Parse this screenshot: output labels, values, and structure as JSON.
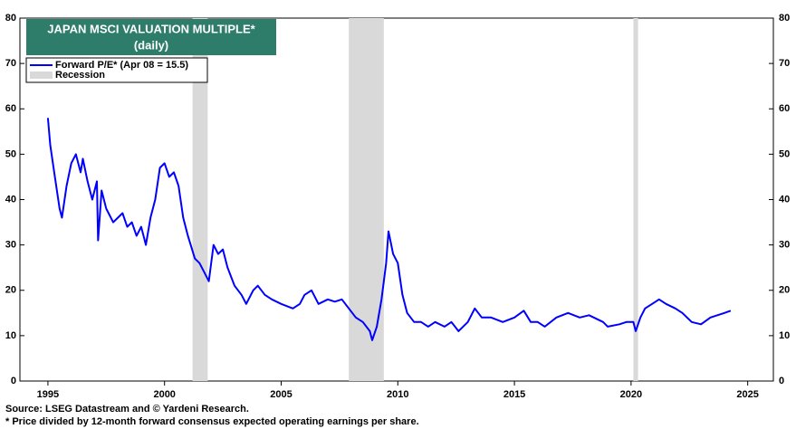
{
  "chart_data": {
    "type": "line",
    "title": "JAPAN MSCI VALUATION MULTIPLE*",
    "subtitle": "(daily)",
    "source": "Source: LSEG Datastream and © Yardeni Research.",
    "footnote": "* Price divided by 12-month forward consensus expected operating earnings per share.",
    "xlim": [
      1993.8,
      2026.1
    ],
    "xticks": [
      1995,
      2000,
      2005,
      2010,
      2015,
      2020,
      2025
    ],
    "ylim": [
      0,
      80
    ],
    "yticks": [
      0,
      10,
      20,
      30,
      40,
      50,
      60,
      70,
      80
    ],
    "recession_label": "Recession",
    "recession_color": "#d9d9d9",
    "recessions": [
      [
        2001.2,
        2001.85
      ],
      [
        2007.9,
        2009.4
      ],
      [
        2020.1,
        2020.3
      ]
    ],
    "x": [
      1995.0,
      1995.1,
      1995.3,
      1995.5,
      1995.6,
      1995.8,
      1996.0,
      1996.2,
      1996.4,
      1996.5,
      1996.7,
      1996.9,
      1997.1,
      1997.15,
      1997.3,
      1997.5,
      1997.8,
      1998.0,
      1998.2,
      1998.4,
      1998.6,
      1998.8,
      1999.0,
      1999.2,
      1999.4,
      1999.6,
      1999.8,
      2000.0,
      2000.2,
      2000.4,
      2000.6,
      2000.8,
      2001.0,
      2001.3,
      2001.5,
      2001.7,
      2001.9,
      2002.1,
      2002.3,
      2002.5,
      2002.7,
      2003.0,
      2003.3,
      2003.5,
      2003.8,
      2004.0,
      2004.3,
      2004.6,
      2005.0,
      2005.5,
      2005.8,
      2006.0,
      2006.3,
      2006.6,
      2007.0,
      2007.3,
      2007.6,
      2007.9,
      2008.2,
      2008.5,
      2008.8,
      2008.9,
      2009.1,
      2009.3,
      2009.5,
      2009.6,
      2009.8,
      2010.0,
      2010.2,
      2010.4,
      2010.7,
      2011.0,
      2011.3,
      2011.6,
      2012.0,
      2012.3,
      2012.6,
      2013.0,
      2013.3,
      2013.6,
      2014.0,
      2014.5,
      2015.0,
      2015.4,
      2015.7,
      2016.0,
      2016.3,
      2016.8,
      2017.3,
      2017.8,
      2018.2,
      2018.8,
      2019.0,
      2019.5,
      2019.8,
      2020.1,
      2020.2,
      2020.4,
      2020.6,
      2020.9,
      2021.2,
      2021.5,
      2021.9,
      2022.2,
      2022.6,
      2023.0,
      2023.4,
      2023.7,
      2024.0,
      2024.27
    ],
    "series": [
      {
        "name": "Forward P/E* (Apr 08 = 15.5)",
        "color": "#0000ff",
        "values": [
          58,
          52,
          45,
          38,
          36,
          43,
          48,
          50,
          46,
          49,
          44,
          40,
          44,
          31,
          42,
          38,
          35,
          36,
          37,
          34,
          35,
          32,
          34,
          30,
          36,
          40,
          47,
          48,
          45,
          46,
          43,
          36,
          32,
          27,
          26,
          24,
          22,
          30,
          28,
          29,
          25,
          21,
          19,
          17,
          20,
          21,
          19,
          18,
          17,
          16,
          17,
          19,
          20,
          17,
          18,
          17.5,
          18,
          16,
          14,
          13,
          11,
          9,
          12,
          18,
          26,
          33,
          28,
          26,
          19,
          15,
          13,
          13,
          12,
          13,
          12,
          13,
          11,
          13,
          16,
          14,
          14,
          13,
          14,
          15.5,
          13,
          13,
          12,
          14,
          15,
          14,
          14.5,
          13,
          12,
          12.5,
          13,
          13,
          11,
          14,
          16,
          17,
          18,
          17,
          16,
          15,
          13,
          12.5,
          14,
          14.5,
          15,
          15.5
        ]
      }
    ]
  }
}
